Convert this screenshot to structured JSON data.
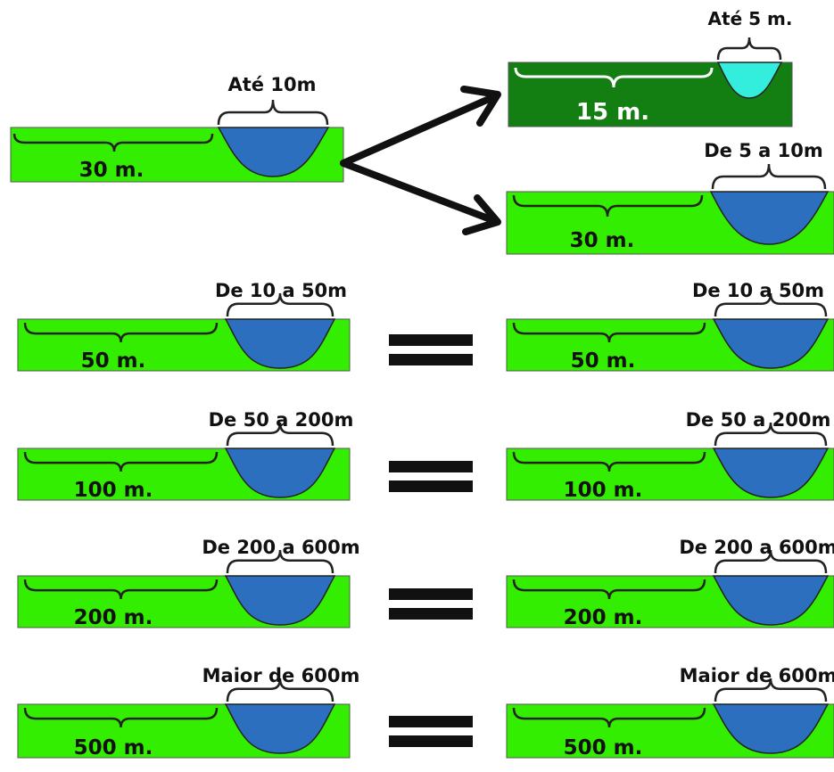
{
  "colors": {
    "grass": "#33ee00",
    "grass_dark": "#137f13",
    "water": "#2d6fbf",
    "water_light": "#33eedd",
    "outline": "#222222",
    "text": "#111111",
    "text_light": "#ffffff"
  },
  "top": {
    "left": {
      "width_label": "Até 10m",
      "margin_label": "30 m."
    },
    "upper_right": {
      "width_label": "Até 5 m.",
      "margin_label": "15 m."
    },
    "lower_right": {
      "width_label": "De 5 a 10m",
      "margin_label": "30 m."
    }
  },
  "rows": [
    {
      "width_label": "De 10 a 50m",
      "margin_label": "50 m."
    },
    {
      "width_label": "De 50 a 200m",
      "margin_label": "100 m."
    },
    {
      "width_label": "De 200 a 600m",
      "margin_label": "200 m."
    },
    {
      "width_label": "Maior de 600m",
      "margin_label": "500 m."
    }
  ],
  "equals_symbol": "="
}
